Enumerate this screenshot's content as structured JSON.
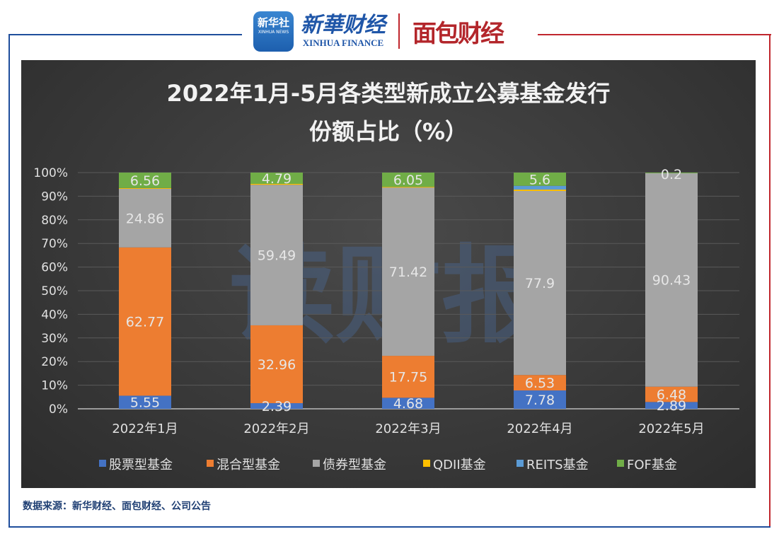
{
  "header": {
    "logo_xinhua_news": "新华社",
    "logo_xinhua_news_en": "XINHUA NEWS",
    "logo_xinhua_finance": "新華财经",
    "logo_xinhua_finance_en": "XINHUA FINANCE",
    "logo_mianbao": "面包财经"
  },
  "watermark": "读财报",
  "source": "数据来源：新华财经、面包财经、公司公告",
  "chart_data": {
    "type": "bar",
    "stacked": "percent",
    "title_lines": [
      "2022年1月-5月各类型新成立公募基金发行",
      "份额占比（%）"
    ],
    "categories": [
      "2022年1月",
      "2022年2月",
      "2022年3月",
      "2022年4月",
      "2022年5月"
    ],
    "y_ticks": [
      "0%",
      "10%",
      "20%",
      "30%",
      "40%",
      "50%",
      "60%",
      "70%",
      "80%",
      "90%",
      "100%"
    ],
    "ylim": [
      0,
      100
    ],
    "grid": true,
    "legend_position": "bottom",
    "series": [
      {
        "name": "股票型基金",
        "color": "#4472c4",
        "values": [
          5.55,
          2.39,
          4.68,
          7.78,
          2.89
        ],
        "labels": [
          "5.55",
          "2.39",
          "4.68",
          "7.78",
          "2.89"
        ]
      },
      {
        "name": "混合型基金",
        "color": "#ed7d31",
        "values": [
          62.77,
          32.96,
          17.75,
          6.53,
          6.48
        ],
        "labels": [
          "62.77",
          "32.96",
          "17.75",
          "6.53",
          "6.48"
        ]
      },
      {
        "name": "债券型基金",
        "color": "#a5a5a5",
        "values": [
          24.86,
          59.49,
          71.42,
          77.9,
          90.43
        ],
        "labels": [
          "24.86",
          "59.49",
          "71.42",
          "77.9",
          "90.43"
        ]
      },
      {
        "name": "QDII基金",
        "color": "#ffc000",
        "values": [
          0.26,
          0.37,
          0.1,
          0.59,
          0
        ],
        "labels": [
          "",
          "",
          "",
          "",
          ""
        ]
      },
      {
        "name": "REITS基金",
        "color": "#5b9bd5",
        "values": [
          0,
          0,
          0,
          1.6,
          0
        ],
        "labels": [
          "",
          "",
          "",
          "",
          ""
        ]
      },
      {
        "name": "FOF基金",
        "color": "#70ad47",
        "values": [
          6.56,
          4.79,
          6.05,
          5.6,
          0.2
        ],
        "labels": [
          "6.56",
          "4.79",
          "6.05",
          "5.6",
          "0.2"
        ]
      }
    ]
  }
}
